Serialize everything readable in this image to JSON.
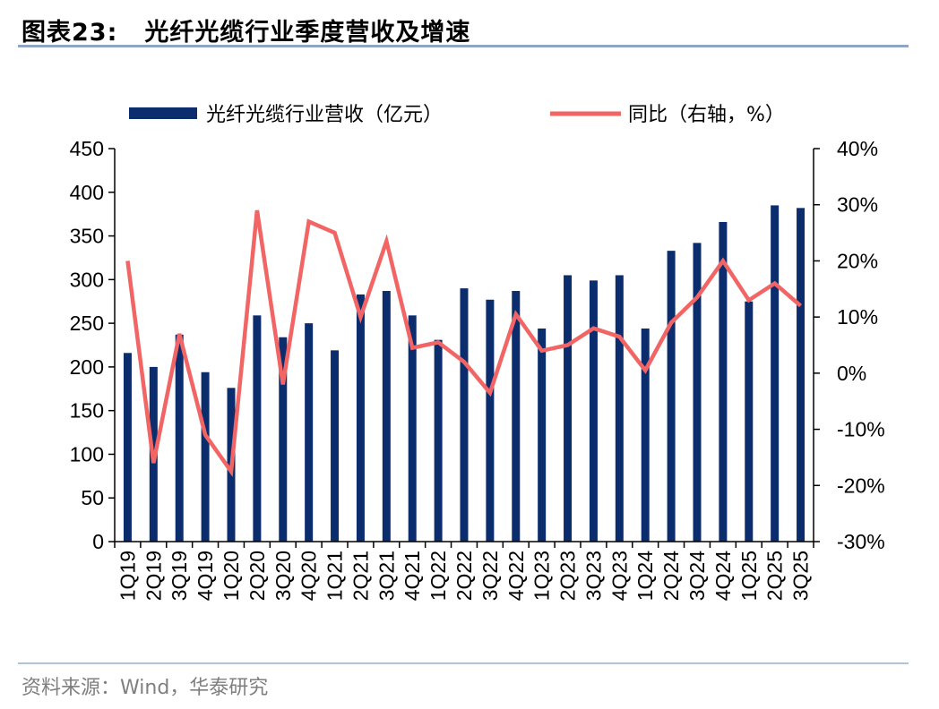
{
  "figure": {
    "number": "图表23:",
    "title": "光纤光缆行业季度营收及增速",
    "source": "资料来源：Wind，华泰研究"
  },
  "chart_data": {
    "type": "bar+line",
    "title": "光纤光缆行业季度营收及增速",
    "categories": [
      "1Q19",
      "2Q19",
      "3Q19",
      "4Q19",
      "1Q20",
      "2Q20",
      "3Q20",
      "4Q20",
      "1Q21",
      "2Q21",
      "3Q21",
      "4Q21",
      "1Q22",
      "2Q22",
      "3Q22",
      "4Q22",
      "1Q23",
      "2Q23",
      "3Q23",
      "4Q23",
      "1Q24",
      "2Q24",
      "3Q24",
      "4Q24",
      "1Q25",
      "2Q25",
      "3Q25"
    ],
    "series": [
      {
        "name": "光纤光缆行业营收（亿元）",
        "kind": "bar",
        "axis": "left",
        "color": "#0b2d6e",
        "values": [
          216,
          200,
          237,
          194,
          176,
          259,
          234,
          250,
          219,
          283,
          287,
          259,
          231,
          290,
          277,
          287,
          244,
          305,
          299,
          305,
          244,
          333,
          342,
          366,
          275,
          385,
          382
        ]
      },
      {
        "name": "同比（右轴，%）",
        "kind": "line",
        "axis": "right",
        "color": "#f26565",
        "values": [
          20,
          -16,
          7,
          -11,
          -17.5,
          29,
          -2,
          27,
          25,
          10,
          23.5,
          4.5,
          5.5,
          2,
          -3.5,
          10.5,
          4,
          5,
          8,
          6.5,
          0.5,
          9,
          13.5,
          20,
          13,
          16,
          12
        ]
      }
    ],
    "left_axis": {
      "min": 0,
      "max": 450,
      "step": 50,
      "ticks": [
        "0",
        "50",
        "100",
        "150",
        "200",
        "250",
        "300",
        "350",
        "400",
        "450"
      ]
    },
    "right_axis": {
      "min": -30,
      "max": 40,
      "step": 10,
      "ticks": [
        "-30%",
        "-20%",
        "-10%",
        "0%",
        "10%",
        "20%",
        "30%",
        "40%"
      ]
    },
    "legend_position": "top",
    "grid": false
  }
}
